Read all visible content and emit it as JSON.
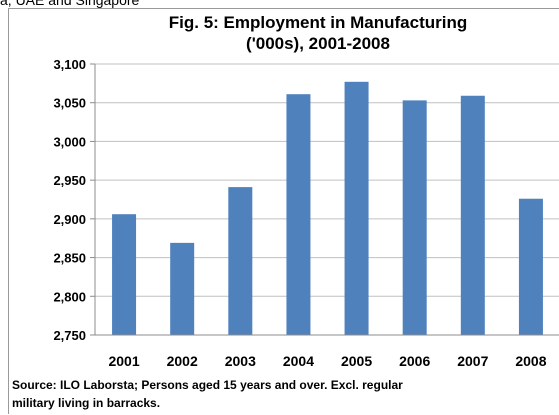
{
  "page": {
    "top_text": "a, UAE and Singapore"
  },
  "chart_data": {
    "type": "bar",
    "title_lines": [
      "Fig. 5: Employment in Manufacturing",
      "('000s), 2001-2008"
    ],
    "categories": [
      "2001",
      "2002",
      "2003",
      "2004",
      "2005",
      "2006",
      "2007",
      "2008"
    ],
    "values": [
      2906,
      2869,
      2941,
      3061,
      3077,
      3053,
      3059,
      2926
    ],
    "ylim": [
      2750,
      3100
    ],
    "yticks": [
      2750,
      2800,
      2850,
      2900,
      2950,
      3000,
      3050,
      3100
    ],
    "ytick_labels": [
      "2,750",
      "2,800",
      "2,850",
      "2,900",
      "2,950",
      "3,000",
      "3,050",
      "3,100"
    ],
    "grid": true,
    "xlabel": "",
    "ylabel": "",
    "source_lines": [
      "Source: ILO Laborsta; Persons aged 15 years and over. Excl. regular",
      "military living in barracks."
    ],
    "colors": {
      "bar": "#4f81bd",
      "grid": "#c0c0c0",
      "axis": "#8c8c8c"
    }
  }
}
